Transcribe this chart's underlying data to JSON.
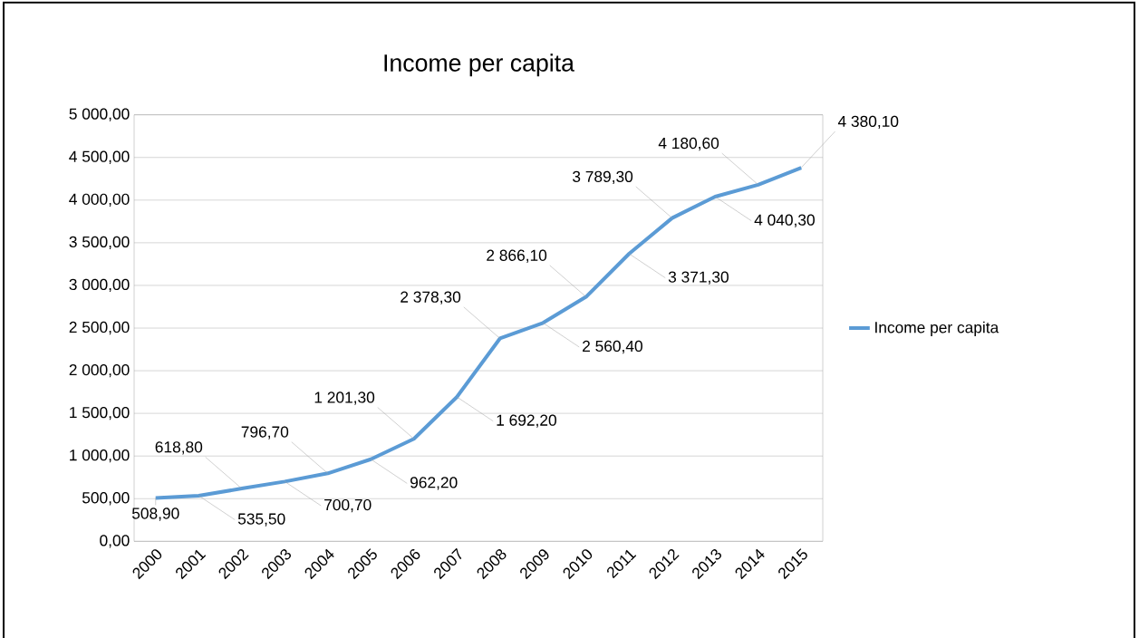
{
  "chart_data": {
    "type": "line",
    "title": "Income per capita",
    "categories": [
      "2000",
      "2001",
      "2002",
      "2003",
      "2004",
      "2005",
      "2006",
      "2007",
      "2008",
      "2009",
      "2010",
      "2011",
      "2012",
      "2013",
      "2014",
      "2015"
    ],
    "series": [
      {
        "name": "Income per capita",
        "color": "#5b9bd5",
        "values": [
          508.9,
          535.5,
          618.8,
          700.7,
          796.7,
          962.2,
          1201.3,
          1692.2,
          2378.3,
          2560.4,
          2866.1,
          3371.3,
          3789.3,
          4040.3,
          4180.6,
          4380.1
        ],
        "value_labels": [
          "508,90",
          "535,50",
          "618,80",
          "700,70",
          "796,70",
          "962,20",
          "1 201,30",
          "1 692,20",
          "2 378,30",
          "2 560,40",
          "2 866,10",
          "3 371,30",
          "3 789,30",
          "4 040,30",
          "4 180,60",
          "4 380,10"
        ]
      }
    ],
    "ylim": [
      0,
      5000
    ],
    "yticks": [
      {
        "value": 0,
        "label": "0,00"
      },
      {
        "value": 500,
        "label": "500,00"
      },
      {
        "value": 1000,
        "label": "1 000,00"
      },
      {
        "value": 1500,
        "label": "1 500,00"
      },
      {
        "value": 2000,
        "label": "2 000,00"
      },
      {
        "value": 2500,
        "label": "2 500,00"
      },
      {
        "value": 3000,
        "label": "3 000,00"
      },
      {
        "value": 3500,
        "label": "3 500,00"
      },
      {
        "value": 4000,
        "label": "4 000,00"
      },
      {
        "value": 4500,
        "label": "4 500,00"
      },
      {
        "value": 5000,
        "label": "5 000,00"
      }
    ],
    "grid": "y",
    "legend": "right",
    "marker": "none",
    "line_style": "solid"
  }
}
